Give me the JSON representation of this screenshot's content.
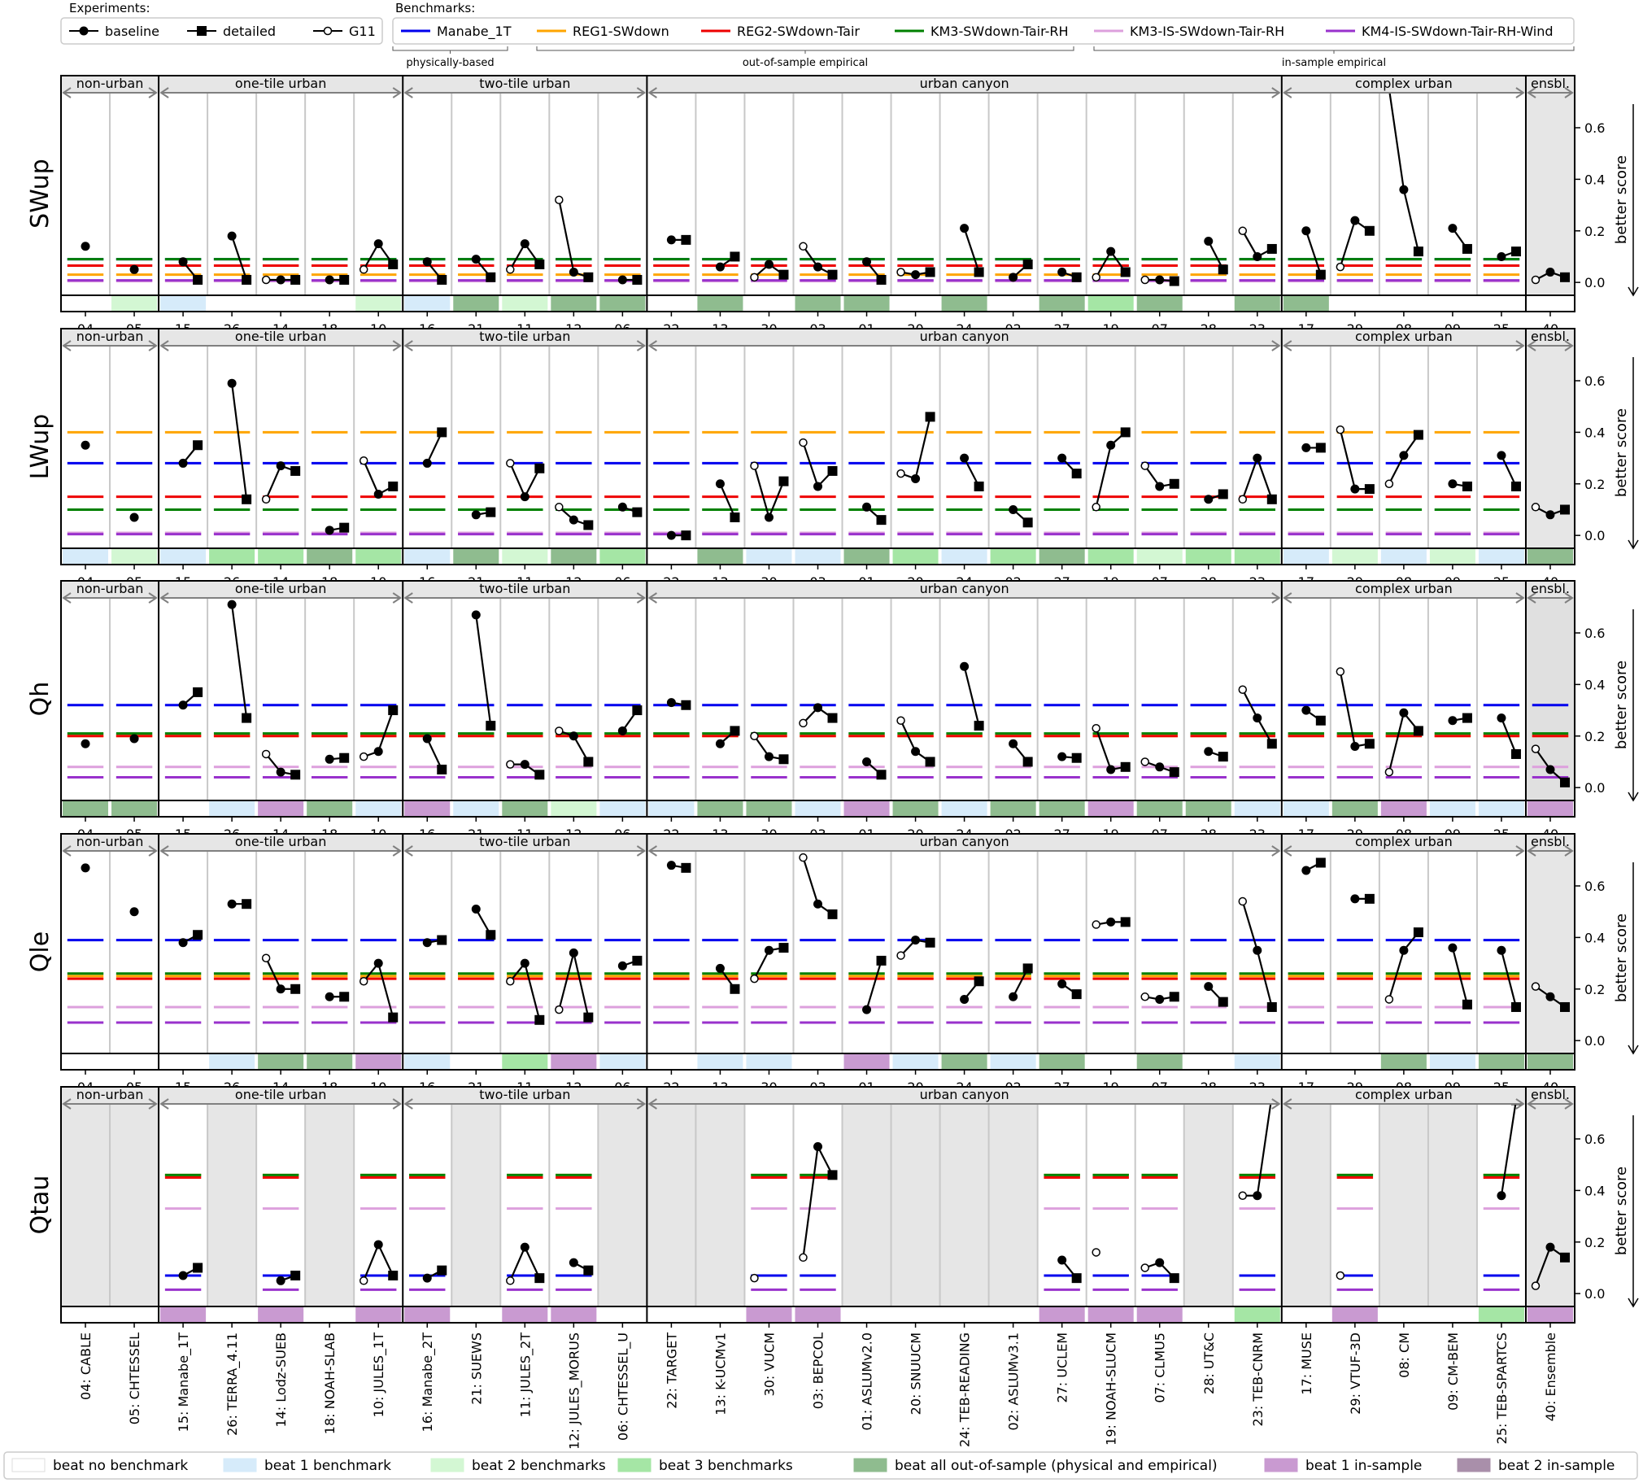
{
  "legend": {
    "experiments_title": "Experiments:",
    "experiments": [
      {
        "label": "baseline",
        "marker": "dot"
      },
      {
        "label": "detailed",
        "marker": "square"
      },
      {
        "label": "G11",
        "marker": "open"
      }
    ],
    "benchmarks_title": "Benchmarks:",
    "benchmarks": [
      {
        "label": "Manabe_1T",
        "color": "#0000ee"
      },
      {
        "label": "REG1-SWdown",
        "color": "#ffa500"
      },
      {
        "label": "REG2-SWdown-Tair",
        "color": "#ee0000"
      },
      {
        "label": "KM3-SWdown-Tair-RH",
        "color": "#008000"
      },
      {
        "label": "KM3-IS-SWdown-Tair-RH",
        "color": "#dda0dd"
      },
      {
        "label": "KM4-IS-SWdown-Tair-RH-Wind",
        "color": "#9932cc"
      }
    ],
    "benchmark_groups": [
      "physically-based",
      "out-of-sample empirical",
      "in-sample empirical"
    ],
    "score_bands": [
      {
        "label": "beat no benchmark",
        "color": "#ffffff"
      },
      {
        "label": "beat 1 benchmark",
        "color": "#d6ebfa"
      },
      {
        "label": "beat 2 benchmarks",
        "color": "#d3f7d3"
      },
      {
        "label": "beat 3 benchmarks",
        "color": "#a5e6a5"
      },
      {
        "label": "beat all out-of-sample (physical and empirical)",
        "color": "#8fbc8f"
      },
      {
        "label": "beat 1 in-sample",
        "color": "#c99ad1"
      },
      {
        "label": "beat 2 in-sample",
        "color": "#a98faa"
      }
    ]
  },
  "chart_data": {
    "type": "line",
    "y_tick_labels": [
      "0.0",
      "0.2",
      "0.4",
      "0.6"
    ],
    "y_ticks": [
      0,
      0.2,
      0.4,
      0.6
    ],
    "ylim": [
      -0.05,
      0.72
    ],
    "ylabel_right": "better score",
    "groups": [
      {
        "label": "non-urban",
        "count": 2
      },
      {
        "label": "one-tile urban",
        "count": 5
      },
      {
        "label": "two-tile urban",
        "count": 5
      },
      {
        "label": "urban canyon",
        "count": 13
      },
      {
        "label": "complex urban",
        "count": 5
      },
      {
        "label": "ensbl.",
        "count": 1
      }
    ],
    "models": [
      {
        "id": "04",
        "name": "04: CABLE"
      },
      {
        "id": "05",
        "name": "05: CHTESSEL"
      },
      {
        "id": "15",
        "name": "15: Manabe_1T"
      },
      {
        "id": "26",
        "name": "26: TERRA_4.11"
      },
      {
        "id": "14",
        "name": "14: Lodz-SUEB"
      },
      {
        "id": "18",
        "name": "18: NOAH-SLAB"
      },
      {
        "id": "10",
        "name": "10: JULES_1T"
      },
      {
        "id": "16",
        "name": "16: Manabe_2T"
      },
      {
        "id": "21",
        "name": "21: SUEWS"
      },
      {
        "id": "11",
        "name": "11: JULES_2T"
      },
      {
        "id": "12",
        "name": "12: JULES_MORUS"
      },
      {
        "id": "06",
        "name": "06: CHTESSEL_U"
      },
      {
        "id": "22",
        "name": "22: TARGET"
      },
      {
        "id": "13",
        "name": "13: K-UCMv1"
      },
      {
        "id": "30",
        "name": "30: VUCM"
      },
      {
        "id": "03",
        "name": "03: BEPCOL"
      },
      {
        "id": "01",
        "name": "01: ASLUMv2.0"
      },
      {
        "id": "20",
        "name": "20: SNUUCM"
      },
      {
        "id": "24",
        "name": "24: TEB-READING"
      },
      {
        "id": "02",
        "name": "02: ASLUMv3.1"
      },
      {
        "id": "27",
        "name": "27: UCLEM"
      },
      {
        "id": "19",
        "name": "19: NOAH-SLUCM"
      },
      {
        "id": "07",
        "name": "07: CLMU5"
      },
      {
        "id": "28",
        "name": "28: UT&C"
      },
      {
        "id": "23",
        "name": "23: TEB-CNRM"
      },
      {
        "id": "17",
        "name": "17: MUSE"
      },
      {
        "id": "29",
        "name": "29: VTUF-3D"
      },
      {
        "id": "08",
        "name": "08: CM"
      },
      {
        "id": "09",
        "name": "09: CM-BEM"
      },
      {
        "id": "25",
        "name": "25: TEB-SPARTCS"
      },
      {
        "id": "40",
        "name": "40: Ensemble"
      }
    ],
    "panels": [
      {
        "variable": "SWup",
        "benchmarks": {
          "Manabe_1T": 0.09,
          "REG1-SWdown": 0.03,
          "REG2-SWdown-Tair": 0.065,
          "KM3-SWdown-Tair-RH": 0.09,
          "KM3-IS-SWdown-Tair-RH": 0.005,
          "KM4-IS-SWdown-Tair-RH-Wind": 0.008
        },
        "greyed": [
          30
        ],
        "values": [
          {
            "b": 0.14
          },
          {
            "b": 0.05
          },
          {
            "b": 0.08,
            "d": 0.01
          },
          {
            "b": 0.18,
            "d": 0.01
          },
          {
            "g": 0.01,
            "b": 0.01,
            "d": 0.01
          },
          {
            "b": 0.01,
            "d": 0.01
          },
          {
            "g": 0.05,
            "b": 0.15,
            "d": 0.07
          },
          {
            "b": 0.08,
            "d": 0.01
          },
          {
            "b": 0.09,
            "d": 0.02
          },
          {
            "g": 0.05,
            "b": 0.15,
            "d": 0.07
          },
          {
            "g": 0.32,
            "b": 0.04,
            "d": 0.02
          },
          {
            "b": 0.01,
            "d": 0.01
          },
          {
            "b": 0.165,
            "d": 0.165
          },
          {
            "b": 0.06,
            "d": 0.1
          },
          {
            "g": 0.02,
            "b": 0.07,
            "d": 0.03
          },
          {
            "g": 0.14,
            "b": 0.06,
            "d": 0.03
          },
          {
            "b": 0.08,
            "d": 0.01
          },
          {
            "g": 0.04,
            "b": 0.03,
            "d": 0.04
          },
          {
            "b": 0.21,
            "d": 0.04
          },
          {
            "b": 0.02,
            "d": 0.07
          },
          {
            "b": 0.04,
            "d": 0.02
          },
          {
            "g": 0.02,
            "b": 0.12,
            "d": 0.04
          },
          {
            "g": 0.01,
            "b": 0.01,
            "d": 0.005
          },
          {
            "b": 0.16,
            "d": 0.05
          },
          {
            "g": 0.2,
            "b": 0.1,
            "d": 0.13
          },
          {
            "b": 0.2,
            "d": 0.03
          },
          {
            "g": 0.06,
            "b": 0.24,
            "d": 0.2
          },
          {
            "g": 0.75,
            "b": 0.36,
            "d": 0.12
          },
          {
            "b": 0.21,
            "d": 0.13
          },
          {
            "b": 0.1,
            "d": 0.12
          },
          {
            "g": 0.01,
            "b": 0.04,
            "d": 0.02
          }
        ],
        "bands": [
          0,
          2,
          1,
          0,
          0,
          0,
          2,
          1,
          4,
          2,
          4,
          4,
          0,
          4,
          0,
          4,
          4,
          0,
          4,
          0,
          4,
          3,
          4,
          0,
          4,
          4,
          0,
          0,
          0,
          0,
          0
        ]
      },
      {
        "variable": "LWup",
        "benchmarks": {
          "Manabe_1T": 0.28,
          "REG1-SWdown": 0.4,
          "REG2-SWdown-Tair": 0.15,
          "KM3-SWdown-Tair-RH": 0.1,
          "KM3-IS-SWdown-Tair-RH": 0.01,
          "KM4-IS-SWdown-Tair-RH-Wind": 0.005
        },
        "greyed": [
          30
        ],
        "values": [
          {
            "b": 0.35
          },
          {
            "b": 0.07
          },
          {
            "b": 0.28,
            "d": 0.35
          },
          {
            "b": 0.59,
            "d": 0.14
          },
          {
            "g": 0.14,
            "b": 0.27,
            "d": 0.25
          },
          {
            "b": 0.02,
            "d": 0.03
          },
          {
            "g": 0.29,
            "b": 0.16,
            "d": 0.19
          },
          {
            "b": 0.28,
            "d": 0.4
          },
          {
            "b": 0.08,
            "d": 0.09
          },
          {
            "g": 0.28,
            "b": 0.15,
            "d": 0.26
          },
          {
            "g": 0.11,
            "b": 0.06,
            "d": 0.04
          },
          {
            "b": 0.11,
            "d": 0.09
          },
          {
            "b": 0.0,
            "d": 0.0
          },
          {
            "b": 0.2,
            "d": 0.07
          },
          {
            "g": 0.27,
            "b": 0.07,
            "d": 0.21
          },
          {
            "g": 0.36,
            "b": 0.19,
            "d": 0.25
          },
          {
            "b": 0.11,
            "d": 0.06
          },
          {
            "g": 0.24,
            "b": 0.22,
            "d": 0.46
          },
          {
            "b": 0.3,
            "d": 0.19
          },
          {
            "b": 0.1,
            "d": 0.05
          },
          {
            "b": 0.3,
            "d": 0.24
          },
          {
            "g": 0.11,
            "b": 0.35,
            "d": 0.4
          },
          {
            "g": 0.27,
            "b": 0.19,
            "d": 0.2
          },
          {
            "b": 0.14,
            "d": 0.16
          },
          {
            "g": 0.14,
            "b": 0.3,
            "d": 0.14
          },
          {
            "b": 0.34,
            "d": 0.34
          },
          {
            "g": 0.41,
            "b": 0.18,
            "d": 0.18
          },
          {
            "g": 0.2,
            "b": 0.31,
            "d": 0.39
          },
          {
            "b": 0.2,
            "d": 0.19
          },
          {
            "b": 0.31,
            "d": 0.19
          },
          {
            "g": 0.11,
            "b": 0.08,
            "d": 0.1
          }
        ],
        "bands": [
          1,
          2,
          1,
          3,
          3,
          4,
          3,
          1,
          4,
          2,
          4,
          3,
          0,
          4,
          1,
          1,
          4,
          3,
          1,
          3,
          4,
          3,
          2,
          3,
          3,
          1,
          2,
          1,
          2,
          1,
          4
        ]
      },
      {
        "variable": "Qh",
        "benchmarks": {
          "Manabe_1T": 0.32,
          "REG1-SWdown": 0.2,
          "REG2-SWdown-Tair": 0.2,
          "KM3-SWdown-Tair-RH": 0.21,
          "KM3-IS-SWdown-Tair-RH": 0.08,
          "KM4-IS-SWdown-Tair-RH-Wind": 0.04
        },
        "greyed": [],
        "values": [
          {
            "b": 0.17
          },
          {
            "b": 0.19
          },
          {
            "b": 0.32,
            "d": 0.37
          },
          {
            "b": 0.71,
            "d": 0.27
          },
          {
            "g": 0.13,
            "b": 0.06,
            "d": 0.05
          },
          {
            "b": 0.11,
            "d": 0.115
          },
          {
            "g": 0.12,
            "b": 0.14,
            "d": 0.3
          },
          {
            "b": 0.19,
            "d": 0.07
          },
          {
            "b": 0.67,
            "d": 0.24
          },
          {
            "g": 0.09,
            "b": 0.09,
            "d": 0.05
          },
          {
            "g": 0.22,
            "b": 0.2,
            "d": 0.1
          },
          {
            "b": 0.22,
            "d": 0.3
          },
          {
            "b": 0.33,
            "d": 0.32
          },
          {
            "b": 0.17,
            "d": 0.22
          },
          {
            "g": 0.2,
            "b": 0.12,
            "d": 0.11
          },
          {
            "g": 0.25,
            "b": 0.31,
            "d": 0.27
          },
          {
            "b": 0.1,
            "d": 0.05
          },
          {
            "g": 0.26,
            "b": 0.14,
            "d": 0.1
          },
          {
            "b": 0.47,
            "d": 0.24
          },
          {
            "b": 0.17,
            "d": 0.1
          },
          {
            "b": 0.12,
            "d": 0.115
          },
          {
            "g": 0.23,
            "b": 0.07,
            "d": 0.08
          },
          {
            "g": 0.1,
            "b": 0.08,
            "d": 0.06
          },
          {
            "b": 0.14,
            "d": 0.12
          },
          {
            "g": 0.38,
            "b": 0.27,
            "d": 0.17
          },
          {
            "b": 0.3,
            "d": 0.26
          },
          {
            "g": 0.45,
            "b": 0.16,
            "d": 0.17
          },
          {
            "g": 0.06,
            "b": 0.29,
            "d": 0.22
          },
          {
            "b": 0.26,
            "d": 0.27
          },
          {
            "b": 0.27,
            "d": 0.13
          },
          {
            "g": 0.15,
            "b": 0.07,
            "d": 0.02
          }
        ],
        "bands": [
          4,
          4,
          0,
          1,
          5,
          4,
          1,
          5,
          1,
          4,
          2,
          1,
          1,
          4,
          4,
          1,
          5,
          4,
          1,
          4,
          4,
          5,
          4,
          4,
          1,
          1,
          4,
          5,
          1,
          1,
          5
        ]
      },
      {
        "variable": "Qle",
        "benchmarks": {
          "Manabe_1T": 0.39,
          "REG1-SWdown": 0.25,
          "REG2-SWdown-Tair": 0.24,
          "KM3-SWdown-Tair-RH": 0.26,
          "KM3-IS-SWdown-Tair-RH": 0.13,
          "KM4-IS-SWdown-Tair-RH-Wind": 0.07
        },
        "greyed": [
          30
        ],
        "values": [
          {
            "b": 0.67
          },
          {
            "b": 0.5
          },
          {
            "b": 0.38,
            "d": 0.41
          },
          {
            "b": 0.53,
            "d": 0.53
          },
          {
            "g": 0.32,
            "b": 0.2,
            "d": 0.2
          },
          {
            "b": 0.17,
            "d": 0.17
          },
          {
            "g": 0.23,
            "b": 0.3,
            "d": 0.09
          },
          {
            "b": 0.38,
            "d": 0.39
          },
          {
            "b": 0.51,
            "d": 0.41
          },
          {
            "g": 0.23,
            "b": 0.3,
            "d": 0.08
          },
          {
            "g": 0.12,
            "b": 0.34,
            "d": 0.09
          },
          {
            "b": 0.29,
            "d": 0.31
          },
          {
            "b": 0.68,
            "d": 0.67
          },
          {
            "b": 0.28,
            "d": 0.2
          },
          {
            "g": 0.24,
            "b": 0.35,
            "d": 0.36
          },
          {
            "g": 0.71,
            "b": 0.53,
            "d": 0.49
          },
          {
            "b": 0.12,
            "d": 0.31
          },
          {
            "g": 0.33,
            "b": 0.39,
            "d": 0.38
          },
          {
            "b": 0.16,
            "d": 0.23
          },
          {
            "b": 0.17,
            "d": 0.28
          },
          {
            "b": 0.22,
            "d": 0.18
          },
          {
            "g": 0.45,
            "b": 0.46,
            "d": 0.46
          },
          {
            "g": 0.17,
            "b": 0.16,
            "d": 0.17
          },
          {
            "b": 0.21,
            "d": 0.15
          },
          {
            "g": 0.54,
            "b": 0.35,
            "d": 0.13
          },
          {
            "b": 0.66,
            "d": 0.69
          },
          {
            "b": 0.55,
            "d": 0.55
          },
          {
            "g": 0.16,
            "b": 0.35,
            "d": 0.42
          },
          {
            "b": 0.36,
            "d": 0.14
          },
          {
            "b": 0.35,
            "d": 0.13
          },
          {
            "g": 0.21,
            "b": 0.17,
            "d": 0.13
          }
        ],
        "bands": [
          0,
          0,
          0,
          1,
          4,
          4,
          5,
          1,
          0,
          3,
          5,
          1,
          0,
          1,
          1,
          0,
          5,
          1,
          4,
          1,
          4,
          0,
          4,
          0,
          1,
          0,
          0,
          4,
          1,
          4,
          4
        ]
      },
      {
        "variable": "Qtau",
        "benchmarks": {
          "Manabe_1T": 0.07,
          "REG1-SWdown": 0.46,
          "REG2-SWdown-Tair": 0.45,
          "KM3-SWdown-Tair-RH": 0.46,
          "KM3-IS-SWdown-Tair-RH": 0.33,
          "KM4-IS-SWdown-Tair-RH-Wind": 0.015
        },
        "greyed": [
          0,
          1,
          3,
          5,
          8,
          11,
          12,
          13,
          16,
          17,
          18,
          19,
          23,
          25,
          27,
          28,
          30
        ],
        "values": [
          {},
          {},
          {
            "b": 0.07,
            "d": 0.1
          },
          {},
          {
            "b": 0.05,
            "d": 0.07
          },
          {},
          {
            "g": 0.05,
            "b": 0.19,
            "d": 0.07
          },
          {
            "b": 0.06,
            "d": 0.09
          },
          {},
          {
            "g": 0.05,
            "b": 0.18,
            "d": 0.06
          },
          {
            "b": 0.12,
            "d": 0.09
          },
          {},
          {},
          {},
          {
            "g": 0.06
          },
          {
            "g": 0.14,
            "b": 0.57,
            "d": 0.46
          },
          {},
          {},
          {},
          {},
          {
            "b": 0.13,
            "d": 0.06
          },
          {
            "g": 0.16
          },
          {
            "g": 0.1,
            "b": 0.12,
            "d": 0.06
          },
          {},
          {
            "g": 0.38,
            "b": 0.38,
            "d": 0.77
          },
          {},
          {
            "g": 0.07
          },
          {},
          {},
          {
            "b": 0.38,
            "d": 0.75
          },
          {
            "g": 0.03,
            "b": 0.18,
            "d": 0.14
          }
        ],
        "bands": [
          0,
          0,
          5,
          0,
          5,
          0,
          5,
          5,
          0,
          5,
          5,
          0,
          0,
          0,
          5,
          5,
          0,
          0,
          0,
          0,
          5,
          5,
          5,
          0,
          3,
          0,
          5,
          0,
          0,
          3,
          5
        ]
      }
    ]
  }
}
